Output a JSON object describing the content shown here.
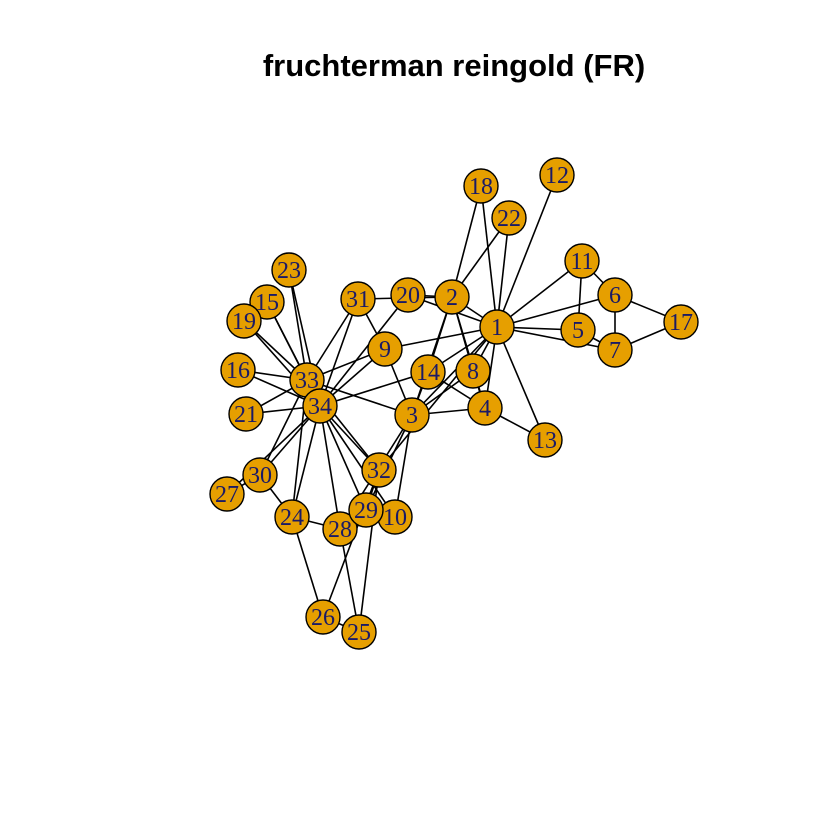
{
  "title": "fruchterman reingold (FR)",
  "colors": {
    "node_fill": "#E69F00",
    "node_stroke": "#000000",
    "edge": "#000000",
    "label": "#1a1a66"
  },
  "nodes": [
    "1",
    "2",
    "3",
    "4",
    "5",
    "6",
    "7",
    "8",
    "9",
    "10",
    "11",
    "12",
    "13",
    "14",
    "15",
    "16",
    "17",
    "18",
    "19",
    "20",
    "21",
    "22",
    "23",
    "24",
    "25",
    "26",
    "27",
    "28",
    "29",
    "30",
    "31",
    "32",
    "33",
    "34"
  ],
  "edges": [
    [
      1,
      2
    ],
    [
      1,
      3
    ],
    [
      1,
      4
    ],
    [
      1,
      5
    ],
    [
      1,
      6
    ],
    [
      1,
      7
    ],
    [
      1,
      8
    ],
    [
      1,
      9
    ],
    [
      1,
      11
    ],
    [
      1,
      12
    ],
    [
      1,
      13
    ],
    [
      1,
      14
    ],
    [
      1,
      18
    ],
    [
      1,
      20
    ],
    [
      1,
      22
    ],
    [
      1,
      32
    ],
    [
      2,
      3
    ],
    [
      2,
      4
    ],
    [
      2,
      8
    ],
    [
      2,
      14
    ],
    [
      2,
      18
    ],
    [
      2,
      20
    ],
    [
      2,
      22
    ],
    [
      2,
      31
    ],
    [
      3,
      4
    ],
    [
      3,
      8
    ],
    [
      3,
      9
    ],
    [
      3,
      10
    ],
    [
      3,
      14
    ],
    [
      3,
      28
    ],
    [
      3,
      29
    ],
    [
      3,
      33
    ],
    [
      4,
      8
    ],
    [
      4,
      13
    ],
    [
      4,
      14
    ],
    [
      5,
      7
    ],
    [
      5,
      11
    ],
    [
      6,
      7
    ],
    [
      6,
      11
    ],
    [
      6,
      17
    ],
    [
      7,
      17
    ],
    [
      9,
      31
    ],
    [
      9,
      33
    ],
    [
      9,
      34
    ],
    [
      10,
      34
    ],
    [
      14,
      34
    ],
    [
      15,
      33
    ],
    [
      15,
      34
    ],
    [
      16,
      33
    ],
    [
      16,
      34
    ],
    [
      19,
      33
    ],
    [
      19,
      34
    ],
    [
      20,
      34
    ],
    [
      21,
      33
    ],
    [
      21,
      34
    ],
    [
      23,
      33
    ],
    [
      23,
      34
    ],
    [
      24,
      26
    ],
    [
      24,
      28
    ],
    [
      24,
      30
    ],
    [
      24,
      33
    ],
    [
      24,
      34
    ],
    [
      25,
      26
    ],
    [
      25,
      28
    ],
    [
      25,
      32
    ],
    [
      26,
      32
    ],
    [
      27,
      30
    ],
    [
      27,
      34
    ],
    [
      28,
      34
    ],
    [
      29,
      32
    ],
    [
      29,
      34
    ],
    [
      30,
      33
    ],
    [
      30,
      34
    ],
    [
      31,
      33
    ],
    [
      31,
      34
    ],
    [
      32,
      33
    ],
    [
      32,
      34
    ],
    [
      33,
      34
    ]
  ]
}
